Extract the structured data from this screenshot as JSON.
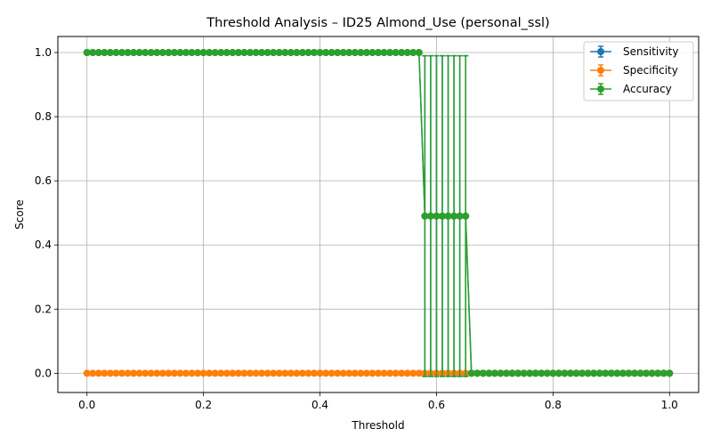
{
  "chart_data": {
    "type": "line",
    "title": "Threshold Analysis – ID25 Almond_Use (personal_ssl)",
    "xlabel": "Threshold",
    "ylabel": "Score",
    "xlim": [
      -0.05,
      1.05
    ],
    "ylim": [
      -0.06,
      1.05
    ],
    "xticks": [
      0.0,
      0.2,
      0.4,
      0.6,
      0.8,
      1.0
    ],
    "xtick_labels": [
      "0.0",
      "0.2",
      "0.4",
      "0.6",
      "0.8",
      "1.0"
    ],
    "yticks": [
      0.0,
      0.2,
      0.4,
      0.6,
      0.8,
      1.0
    ],
    "ytick_labels": [
      "0.0",
      "0.2",
      "0.4",
      "0.6",
      "0.8",
      "1.0"
    ],
    "grid": true,
    "legend_position": "top-right",
    "x": {
      "start": 0.0,
      "stop": 1.0,
      "count": 101
    },
    "series": [
      {
        "name": "Sensitivity",
        "color": "#1f77b4",
        "segments": [
          {
            "from": 0.0,
            "to": 0.57,
            "value": 1.0,
            "error": 0.0
          },
          {
            "from": 0.58,
            "to": 0.65,
            "value": 0.49,
            "error": 0.5
          },
          {
            "from": 0.66,
            "to": 1.0,
            "value": 0.0,
            "error": 0.0
          }
        ]
      },
      {
        "name": "Specificity",
        "color": "#ff7f0e",
        "segments": [
          {
            "from": 0.0,
            "to": 1.0,
            "value": 0.0,
            "error": 0.0
          }
        ]
      },
      {
        "name": "Accuracy",
        "color": "#2ca02c",
        "segments": [
          {
            "from": 0.0,
            "to": 0.57,
            "value": 1.0,
            "error": 0.0
          },
          {
            "from": 0.58,
            "to": 0.65,
            "value": 0.49,
            "error": 0.5
          },
          {
            "from": 0.66,
            "to": 1.0,
            "value": 0.0,
            "error": 0.0
          }
        ]
      }
    ]
  }
}
